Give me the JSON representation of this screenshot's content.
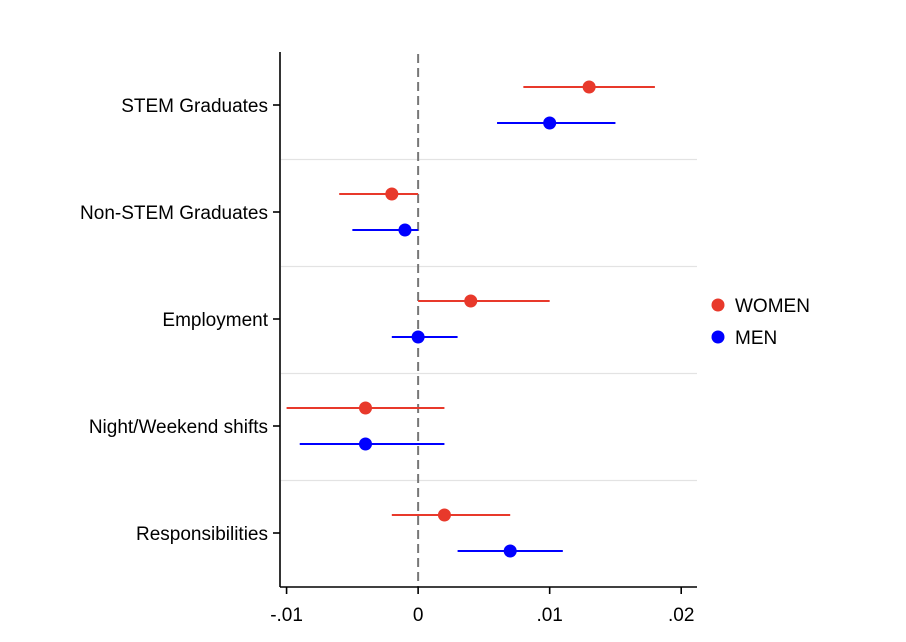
{
  "chart_data": {
    "type": "scatter",
    "subtype": "coefficient-plot-with-confidence-intervals",
    "title": "",
    "xlabel": "",
    "ylabel": "",
    "categories": [
      "STEM Graduates",
      "Non-STEM Graduates",
      "Employment",
      "Night/Weekend shifts",
      "Responsibilities"
    ],
    "xlim": [
      -0.0105,
      0.0212
    ],
    "x_ticks": [
      -0.01,
      0,
      0.01,
      0.02
    ],
    "x_tick_labels": [
      "-.01",
      "0",
      ".01",
      ".02"
    ],
    "reference_line_x": 0,
    "grid": false,
    "category_separators": true,
    "legend_position": "right",
    "series": [
      {
        "name": "WOMEN",
        "color": "#e8392b",
        "values": [
          0.013,
          -0.002,
          0.004,
          -0.004,
          0.002
        ],
        "ci_low": [
          0.008,
          -0.006,
          0.0,
          -0.01,
          -0.002
        ],
        "ci_high": [
          0.018,
          0.0,
          0.01,
          0.002,
          0.007
        ]
      },
      {
        "name": "MEN",
        "color": "#0000ff",
        "values": [
          0.01,
          -0.001,
          0.0,
          -0.004,
          0.007
        ],
        "ci_low": [
          0.006,
          -0.005,
          -0.002,
          -0.009,
          0.003
        ],
        "ci_high": [
          0.015,
          0.0,
          0.003,
          0.002,
          0.011
        ]
      }
    ]
  }
}
